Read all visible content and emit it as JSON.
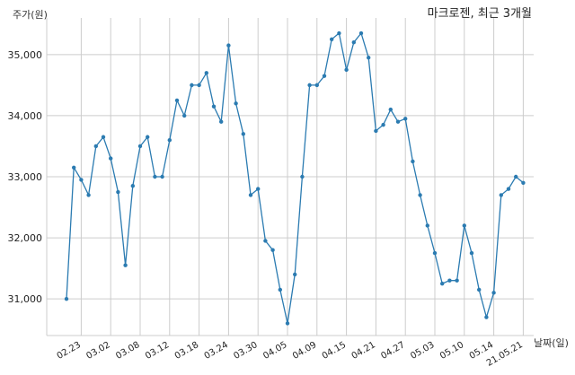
{
  "chart_data": {
    "type": "line",
    "title": "마크로젠, 최근 3개월",
    "ylabel": "주가(원)",
    "xlabel": "날짜(일)",
    "ylim": [
      30400,
      35600
    ],
    "yticks": [
      31000,
      32000,
      33000,
      34000,
      35000
    ],
    "ytick_labels": [
      "31,000",
      "32,000",
      "33,000",
      "34,000",
      "35,000"
    ],
    "xtick_labels": [
      "02.23",
      "03.02",
      "03.08",
      "03.12",
      "03.18",
      "03.24",
      "03.30",
      "04.05",
      "04.09",
      "04.15",
      "04.21",
      "04.27",
      "05.03",
      "05.10",
      "05.14",
      "21.05.21"
    ],
    "xtick_positions": [
      2,
      6,
      10,
      14,
      18,
      22,
      26,
      30,
      34,
      38,
      42,
      46,
      50,
      54,
      58,
      62
    ],
    "grid": true,
    "color": "#2b7bb1",
    "series": [
      {
        "values": [
          31000,
          33150,
          32950,
          32700,
          33500,
          33650,
          33300,
          32750,
          31550,
          32850,
          33500,
          33650,
          33000,
          33000,
          33600,
          34250,
          34000,
          34500,
          34500,
          34700,
          34150,
          33900,
          35150,
          34200,
          33700,
          32700,
          32800,
          31950,
          31800,
          31150,
          30600,
          31400,
          33000,
          34500,
          34500,
          34650,
          35250,
          35350,
          34750,
          35200,
          35350,
          34950,
          33750,
          33850,
          34100,
          33900,
          33950,
          33250,
          32700,
          32200,
          31750,
          31250,
          31300,
          31300,
          32200,
          31750,
          31150,
          30700,
          31100,
          32700,
          32800,
          33000,
          32900
        ]
      }
    ]
  }
}
